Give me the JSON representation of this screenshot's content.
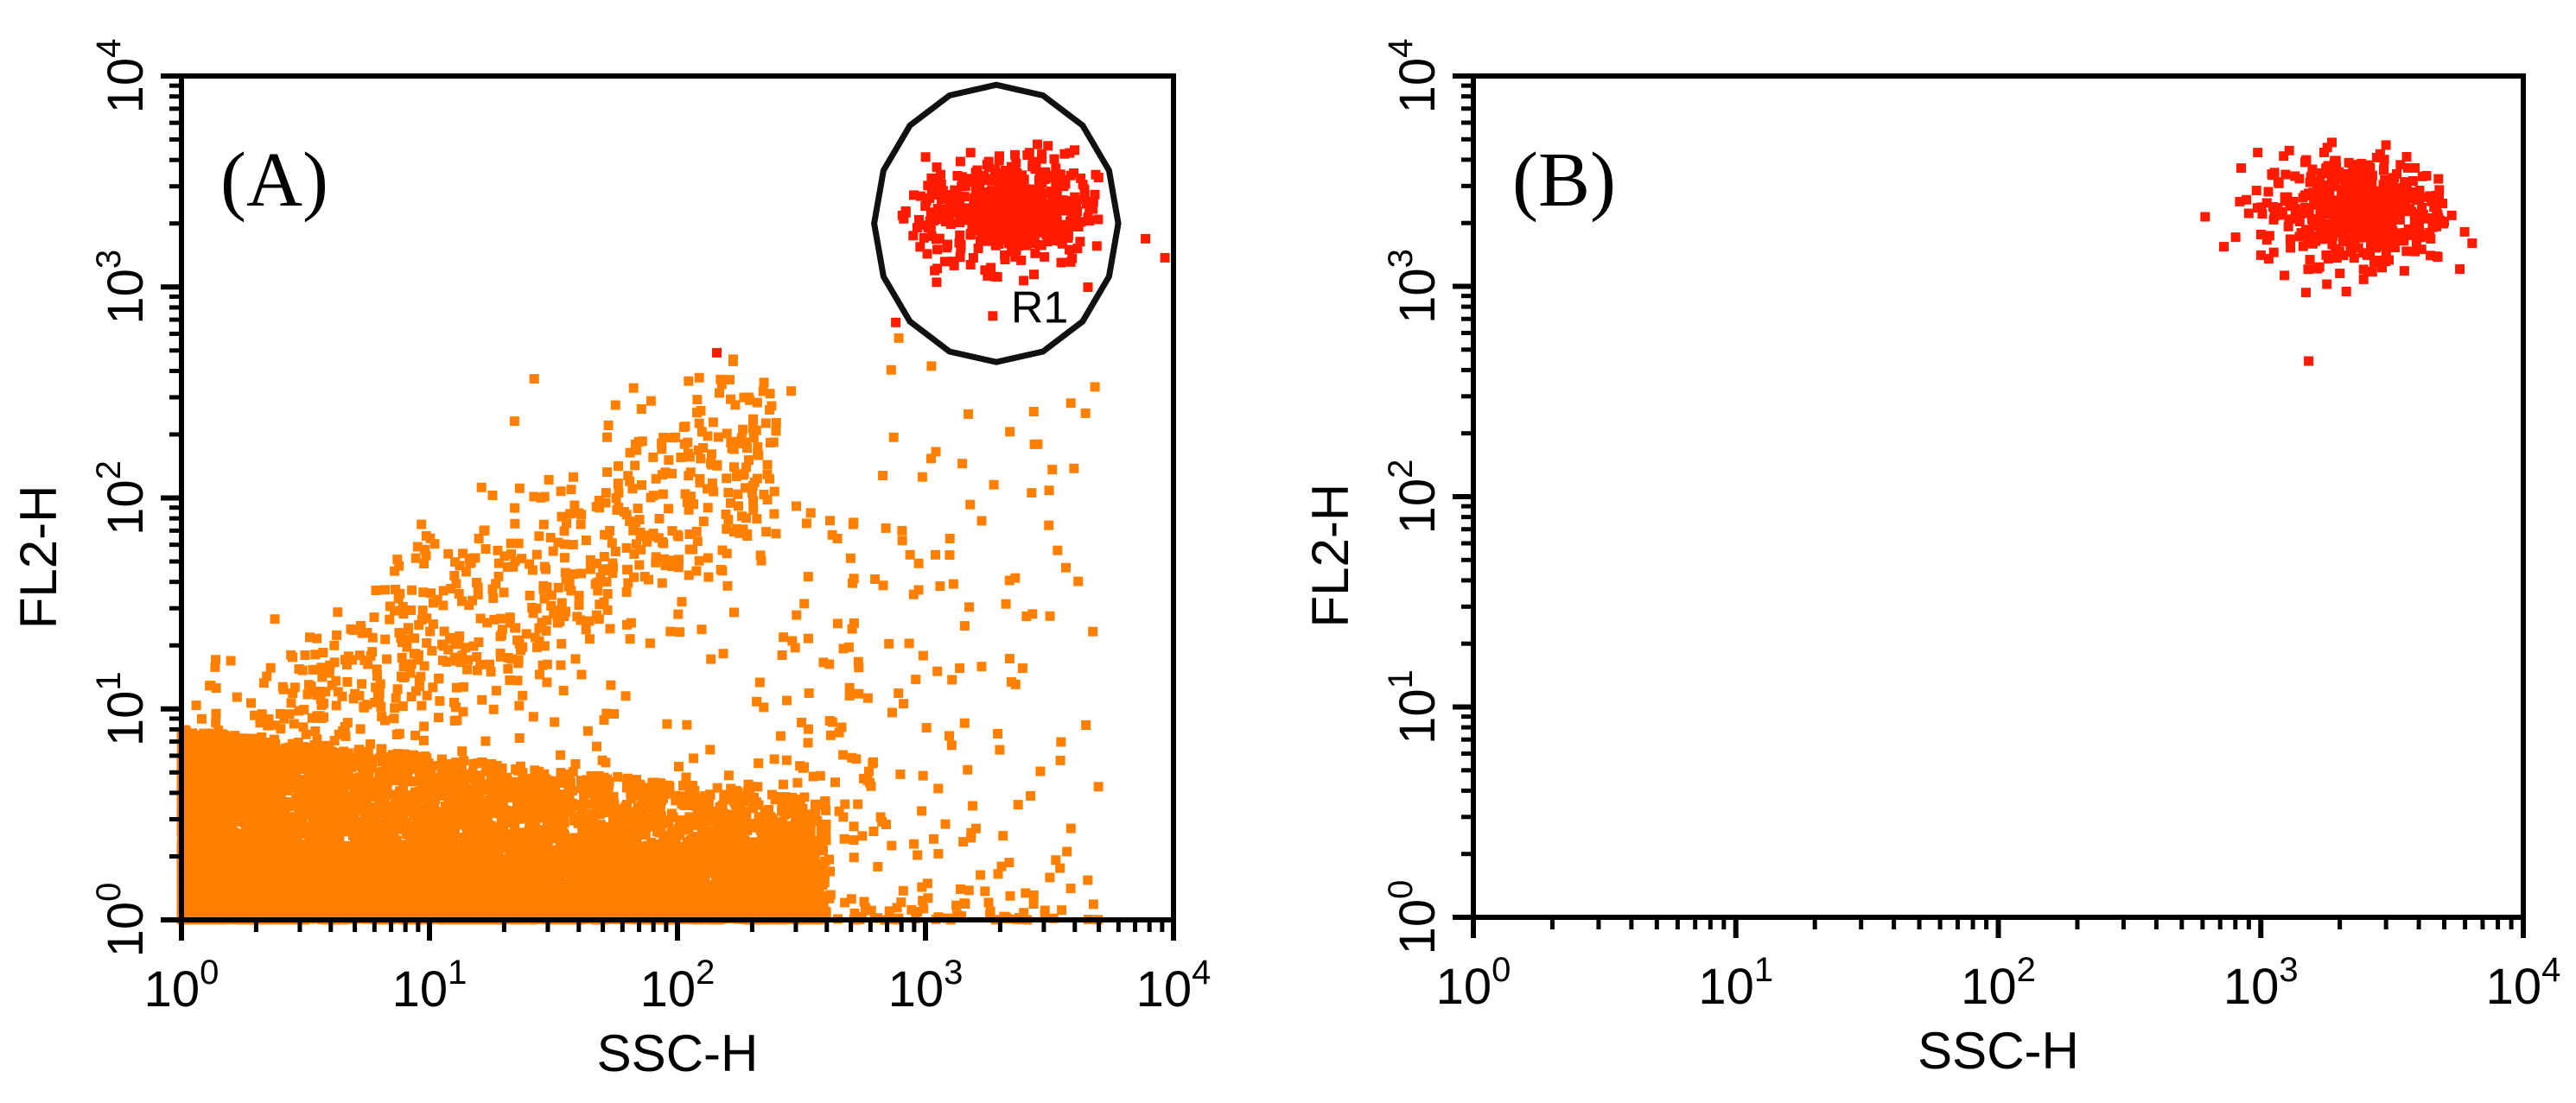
{
  "chart_data": [
    {
      "type": "scatter",
      "panel_label": "(A)",
      "xlabel": "SSC-H",
      "ylabel": "FL2-H",
      "xscale": "log",
      "yscale": "log",
      "xlim": [
        1,
        10000
      ],
      "ylim": [
        1,
        10000
      ],
      "x_tick_labels": [
        {
          "base": "10",
          "exp": "0"
        },
        {
          "base": "10",
          "exp": "1"
        },
        {
          "base": "10",
          "exp": "2"
        },
        {
          "base": "10",
          "exp": "3"
        },
        {
          "base": "10",
          "exp": "4"
        }
      ],
      "y_tick_labels": [
        {
          "base": "10",
          "exp": "0"
        },
        {
          "base": "10",
          "exp": "1"
        },
        {
          "base": "10",
          "exp": "2"
        },
        {
          "base": "10",
          "exp": "3"
        },
        {
          "base": "10",
          "exp": "4"
        }
      ],
      "gate": {
        "name": "R1",
        "x_center": 2300,
        "y_center": 2200,
        "x_range": [
          310,
          12000
        ],
        "y_range": [
          400,
          10000
        ]
      },
      "populations": [
        {
          "name": "ungated events",
          "color": "#ff8000",
          "x_range": [
            1,
            5000
          ],
          "y_range": [
            1,
            500
          ],
          "x_dense_max": 300,
          "y_dense_max": 8
        },
        {
          "name": "R1 events",
          "color": "#ff1a00",
          "x_center": 2200,
          "y_center": 2300,
          "x_range": [
            800,
            5000
          ],
          "y_range": [
            700,
            5000
          ]
        }
      ],
      "grid": false,
      "legend": "none"
    },
    {
      "type": "scatter",
      "panel_label": "(B)",
      "xlabel": "SSC-H",
      "ylabel": "FL2-H",
      "xscale": "log",
      "yscale": "log",
      "xlim": [
        1,
        10000
      ],
      "ylim": [
        1,
        10000
      ],
      "x_tick_labels": [
        {
          "base": "10",
          "exp": "0"
        },
        {
          "base": "10",
          "exp": "1"
        },
        {
          "base": "10",
          "exp": "2"
        },
        {
          "base": "10",
          "exp": "3"
        },
        {
          "base": "10",
          "exp": "4"
        }
      ],
      "y_tick_labels": [
        {
          "base": "10",
          "exp": "0"
        },
        {
          "base": "10",
          "exp": "1"
        },
        {
          "base": "10",
          "exp": "2"
        },
        {
          "base": "10",
          "exp": "3"
        },
        {
          "base": "10",
          "exp": "4"
        }
      ],
      "populations": [
        {
          "name": "R1 events",
          "color": "#ff1a00",
          "x_center": 2300,
          "y_center": 2300,
          "x_range": [
            550,
            5000
          ],
          "y_range": [
            450,
            5000
          ]
        }
      ],
      "grid": false,
      "legend": "none"
    }
  ]
}
